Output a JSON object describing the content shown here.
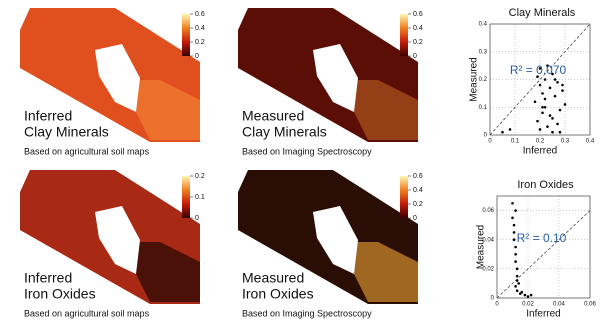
{
  "chart_data": [
    {
      "type": "map",
      "label": [
        "Inferred",
        "Clay Minerals"
      ],
      "caption": "Based on agricultural soil maps",
      "clim": [
        0,
        0.6
      ],
      "cticks": [
        0,
        0.2,
        0.4,
        0.6
      ],
      "colors": [
        "#3a0000",
        "#c21a0a",
        "#f08020",
        "#fff6b0"
      ],
      "fill": "#e0501e",
      "accent": "#f07a30"
    },
    {
      "type": "map",
      "label": [
        "Measured",
        "Clay Minerals"
      ],
      "caption": "Based on Imaging Spectroscopy",
      "clim": [
        0,
        0.6
      ],
      "cticks": [
        0,
        0.2,
        0.4,
        0.6
      ],
      "colors": [
        "#3a0000",
        "#c21a0a",
        "#f08020",
        "#fff6b0"
      ],
      "fill": "#5a0e06",
      "accent": "#a8501c"
    },
    {
      "type": "scatter",
      "title": "Clay Minerals",
      "xlabel": "Inferred",
      "ylabel": "Measured",
      "annotation": "R² = 0.070",
      "annotation_color": "#2a5caa",
      "color": "#000000",
      "grid": true,
      "x": [
        0.18,
        0.19,
        0.2,
        0.2,
        0.21,
        0.21,
        0.22,
        0.22,
        0.23,
        0.24,
        0.25,
        0.25,
        0.26,
        0.27,
        0.28,
        0.28,
        0.29,
        0.3,
        0.2,
        0.22,
        0.24,
        0.26,
        0.25,
        0.23,
        0.19,
        0.27,
        0.21,
        0.29,
        0.05,
        0.08
      ],
      "y": [
        0.12,
        0.05,
        0.18,
        0.02,
        0.15,
        0.08,
        0.2,
        0.1,
        0.03,
        0.17,
        0.22,
        0.06,
        0.14,
        0.19,
        0.09,
        0.01,
        0.16,
        0.11,
        0.24,
        0.13,
        0.07,
        0.2,
        0.01,
        0.25,
        0.21,
        0.04,
        0.1,
        0.18,
        0.01,
        0.02
      ],
      "xlim": [
        0,
        0.4
      ],
      "ylim": [
        0,
        0.4
      ],
      "xticks": [
        0,
        0.1,
        0.2,
        0.3,
        0.4
      ],
      "yticks": [
        0,
        0.1,
        0.2,
        0.3,
        0.4
      ]
    },
    {
      "type": "map",
      "label": [
        "Inferred",
        "Iron Oxides"
      ],
      "caption": "Based on agricultural soil maps",
      "clim": [
        0,
        0.2
      ],
      "cticks": [
        0,
        0.1,
        0.2
      ],
      "colors": [
        "#3a0000",
        "#c21a0a",
        "#f08020",
        "#fff6b0"
      ],
      "fill": "#a82a14",
      "accent": "#2a0a04"
    },
    {
      "type": "map",
      "label": [
        "Measured",
        "Iron Oxides"
      ],
      "caption": "Based on Imaging Spectroscopy",
      "clim": [
        0,
        0.6
      ],
      "cticks": [
        0,
        0.2,
        0.4,
        0.6
      ],
      "colors": [
        "#3a0000",
        "#c21a0a",
        "#f08020",
        "#fff6b0"
      ],
      "fill": "#2a0d04",
      "accent": "#c8862c"
    },
    {
      "type": "scatter",
      "title": "Iron Oxides",
      "xlabel": "Inferred",
      "ylabel": "Measured",
      "annotation": "R² = 0.10",
      "annotation_color": "#2a5caa",
      "color": "#000000",
      "grid": true,
      "x": [
        0.01,
        0.01,
        0.011,
        0.011,
        0.012,
        0.012,
        0.012,
        0.013,
        0.013,
        0.014,
        0.011,
        0.012,
        0.013,
        0.015,
        0.018,
        0.02,
        0.022,
        0.016,
        0.012,
        0.013
      ],
      "y": [
        0.065,
        0.055,
        0.05,
        0.04,
        0.035,
        0.03,
        0.025,
        0.02,
        0.015,
        0.01,
        0.045,
        0.008,
        0.005,
        0.003,
        0.002,
        0.001,
        0.002,
        0.004,
        0.06,
        0.012
      ],
      "xlim": [
        0,
        0.06
      ],
      "ylim": [
        0,
        0.07
      ],
      "xticks": [
        0,
        0.02,
        0.04,
        0.06
      ],
      "yticks": [
        0,
        0.02,
        0.04,
        0.06
      ]
    }
  ]
}
